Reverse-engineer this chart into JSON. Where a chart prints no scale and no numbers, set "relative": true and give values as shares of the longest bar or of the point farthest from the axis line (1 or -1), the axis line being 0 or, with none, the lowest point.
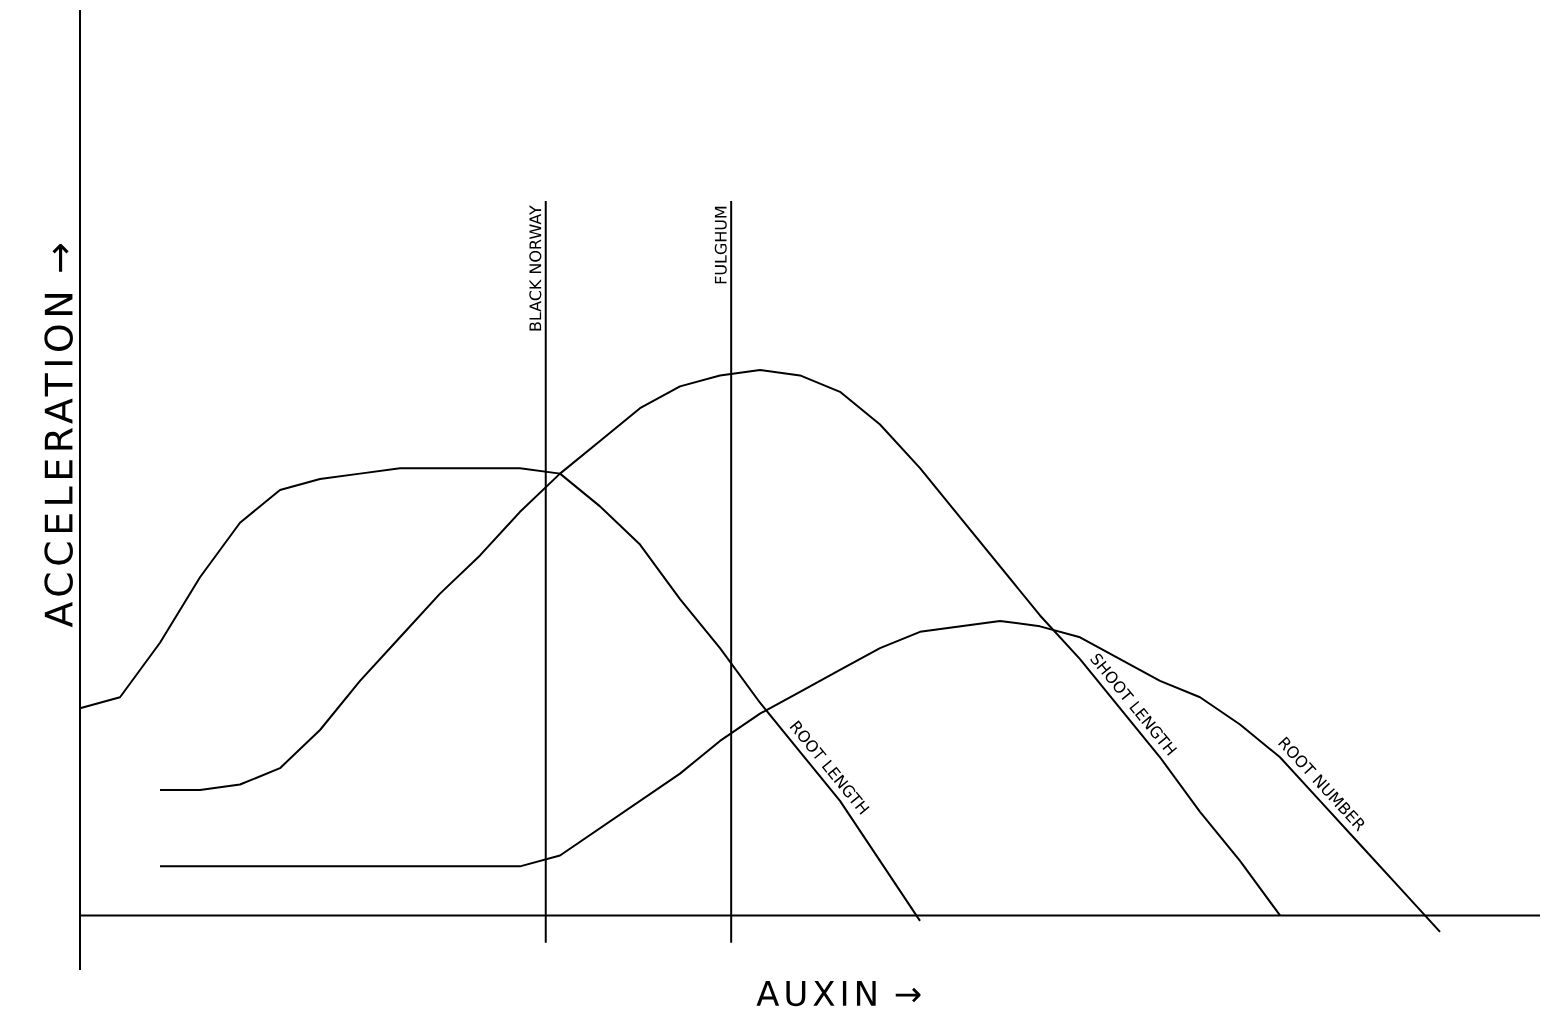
{
  "chart_data": {
    "type": "line",
    "relative": true,
    "xlabel": "AUXIN →",
    "ylabel": "ACCELERATION →",
    "legend": false,
    "tick_labels": false,
    "categories": [
      null,
      null,
      null,
      null,
      null,
      null,
      null,
      null,
      null,
      null,
      null,
      null,
      null,
      null,
      null,
      null,
      null,
      null,
      null,
      null,
      null,
      null,
      null,
      null,
      null,
      null,
      null,
      null,
      null,
      null,
      null,
      null,
      null,
      null,
      null,
      null,
      null
    ],
    "series": [
      {
        "name": "ROOT LENGTH",
        "color": "#000000",
        "values": [
          0.38,
          0.4,
          0.5,
          0.62,
          0.72,
          0.78,
          0.8,
          0.81,
          0.82,
          0.82,
          0.82,
          0.82,
          0.81,
          0.75,
          0.68,
          0.58,
          0.49,
          0.39,
          0.3,
          0.21,
          0.1,
          -0.01,
          null,
          null,
          null,
          null,
          null,
          null,
          null,
          null,
          null,
          null,
          null,
          null,
          null,
          null,
          null
        ]
      },
      {
        "name": "SHOOT LENGTH",
        "color": "#000000",
        "values": [
          null,
          null,
          0.23,
          0.23,
          0.24,
          0.27,
          0.34,
          0.43,
          0.51,
          0.59,
          0.66,
          0.74,
          0.81,
          0.87,
          0.93,
          0.97,
          0.99,
          1.0,
          0.99,
          0.96,
          0.9,
          0.82,
          0.73,
          0.64,
          0.55,
          0.47,
          0.38,
          0.29,
          0.19,
          0.1,
          0.0,
          null,
          null,
          null,
          null,
          null,
          null
        ]
      },
      {
        "name": "ROOT NUMBER",
        "color": "#000000",
        "values": [
          null,
          null,
          0.09,
          0.09,
          0.09,
          0.09,
          0.09,
          0.09,
          0.09,
          0.09,
          0.09,
          0.09,
          0.11,
          0.16,
          0.21,
          0.26,
          0.32,
          0.37,
          0.41,
          0.45,
          0.49,
          0.52,
          0.53,
          0.54,
          0.53,
          0.51,
          0.47,
          0.43,
          0.4,
          0.35,
          0.29,
          0.21,
          0.13,
          0.05,
          -0.03,
          null,
          null
        ]
      }
    ],
    "annotations": [
      "BLACK NORWAY",
      "FULGHUM"
    ]
  }
}
